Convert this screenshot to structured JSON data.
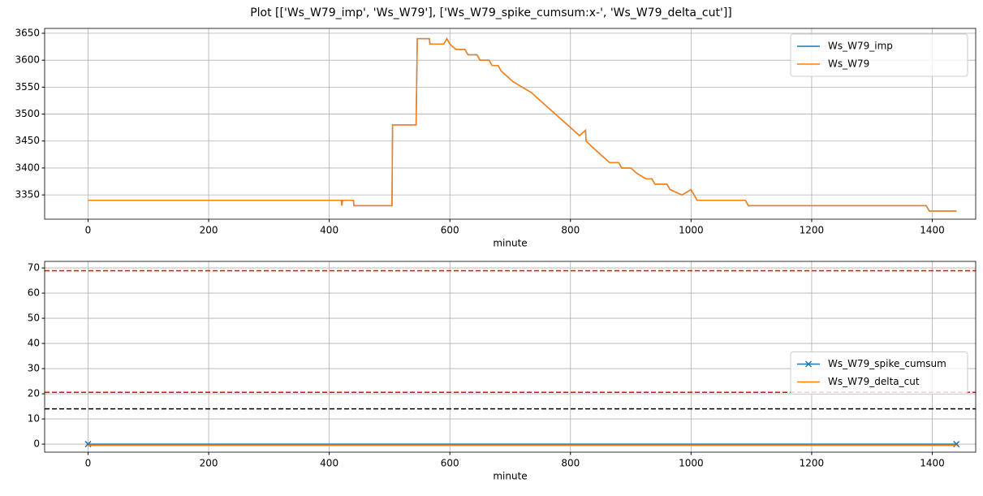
{
  "title": "Plot [['Ws_W79_imp', 'Ws_W79'], ['Ws_W79_spike_cumsum:x-', 'Ws_W79_delta_cut']]",
  "chart_data": [
    {
      "type": "line",
      "xlabel": "minute",
      "grid": true,
      "legend": "upper right",
      "xlim": [
        -72,
        1472
      ],
      "xticks": [
        0,
        200,
        400,
        600,
        800,
        1000,
        1200,
        1400
      ],
      "ylim": [
        3305,
        3659
      ],
      "yticks": [
        3350,
        3400,
        3450,
        3500,
        3550,
        3600,
        3650
      ],
      "x": [
        0,
        420,
        421,
        422,
        440,
        441,
        445,
        504,
        505,
        544,
        546,
        566,
        567,
        590,
        595,
        600,
        610,
        625,
        630,
        645,
        650,
        665,
        670,
        680,
        685,
        695,
        705,
        720,
        735,
        745,
        755,
        765,
        775,
        785,
        795,
        805,
        815,
        825,
        826,
        835,
        845,
        855,
        865,
        880,
        885,
        900,
        910,
        925,
        935,
        940,
        960,
        965,
        985,
        1000,
        1005,
        1010,
        1090,
        1095,
        1390,
        1395,
        1440
      ],
      "series": [
        {
          "name": "Ws_W79_imp",
          "color": "#1f77b4",
          "marker": null,
          "values": [
            3340,
            3340,
            3330,
            3340,
            3340,
            3330,
            3330,
            3330,
            3480,
            3480,
            3640,
            3640,
            3630,
            3630,
            3640,
            3630,
            3620,
            3620,
            3610,
            3610,
            3600,
            3600,
            3590,
            3590,
            3580,
            3570,
            3560,
            3550,
            3540,
            3530,
            3520,
            3510,
            3500,
            3490,
            3480,
            3470,
            3460,
            3470,
            3450,
            3440,
            3430,
            3420,
            3410,
            3410,
            3400,
            3400,
            3390,
            3380,
            3380,
            3370,
            3370,
            3360,
            3350,
            3360,
            3350,
            3340,
            3340,
            3330,
            3330,
            3320,
            3320
          ]
        },
        {
          "name": "Ws_W79",
          "color": "#ff7f0e",
          "marker": null,
          "values": [
            3340,
            3340,
            3330,
            3340,
            3340,
            3330,
            3330,
            3330,
            3480,
            3480,
            3640,
            3640,
            3630,
            3630,
            3640,
            3630,
            3620,
            3620,
            3610,
            3610,
            3600,
            3600,
            3590,
            3590,
            3580,
            3570,
            3560,
            3550,
            3540,
            3530,
            3520,
            3510,
            3500,
            3490,
            3480,
            3470,
            3460,
            3470,
            3450,
            3440,
            3430,
            3420,
            3410,
            3410,
            3400,
            3400,
            3390,
            3380,
            3380,
            3370,
            3370,
            3360,
            3350,
            3360,
            3350,
            3340,
            3340,
            3330,
            3330,
            3320,
            3320
          ]
        }
      ]
    },
    {
      "type": "line",
      "xlabel": "minute",
      "grid": true,
      "legend": "center right",
      "xlim": [
        -72,
        1472
      ],
      "xticks": [
        0,
        200,
        400,
        600,
        800,
        1000,
        1200,
        1400
      ],
      "ylim": [
        -3.2,
        72.6
      ],
      "yticks": [
        0,
        10,
        20,
        30,
        40,
        50,
        60,
        70
      ],
      "x": [
        0,
        1440
      ],
      "series": [
        {
          "name": "Ws_W79_spike_cumsum",
          "color": "#1f77b4",
          "marker": "x",
          "values": [
            0,
            0
          ]
        },
        {
          "name": "Ws_W79_delta_cut",
          "color": "#ff7f0e",
          "marker": null,
          "values": [
            -0.5,
            -0.5
          ]
        }
      ],
      "hlines": [
        {
          "value": 68.9,
          "color": "#ff0000"
        },
        {
          "value": 20.6,
          "color": "#ff0000"
        },
        {
          "value": 14,
          "color": "#000000"
        }
      ]
    }
  ]
}
